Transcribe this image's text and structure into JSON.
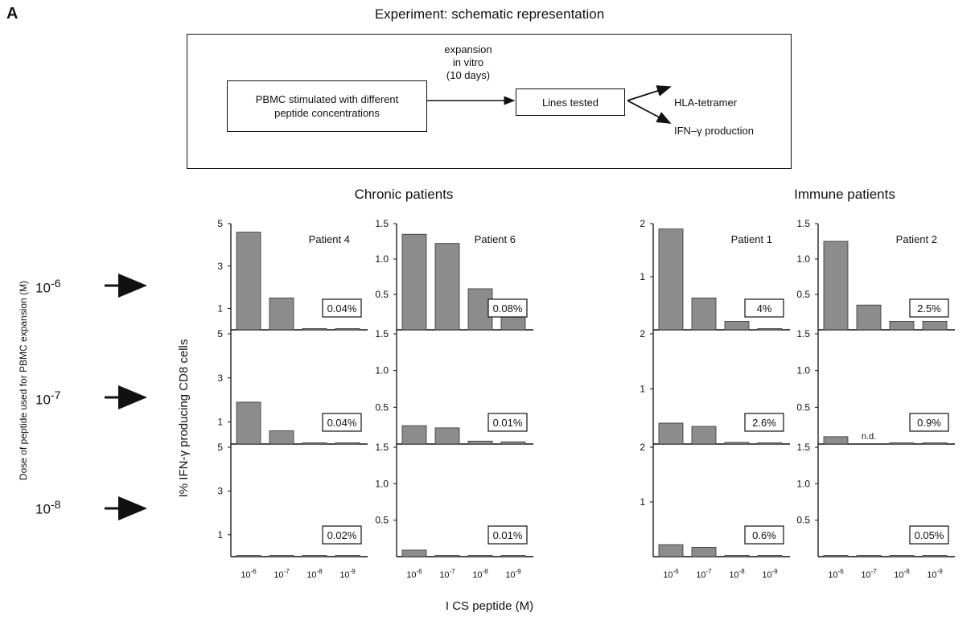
{
  "panel_label": "A",
  "schematic": {
    "title": "Experiment: schematic representation",
    "box_left": "PBMC stimulated with different peptide concentrations",
    "box_left_lines": [
      "PBMC stimulated with different",
      "peptide concentrations"
    ],
    "arrow_label_lines": [
      "expansion",
      "in vitro",
      "(10 days)"
    ],
    "box_mid": "Lines tested",
    "out_top": "HLA-tetramer",
    "out_bottom": "IFN–γ production"
  },
  "groups": {
    "chronic": "Chronic patients",
    "immune": "Immune patients"
  },
  "y_axis_label": "I% IFN-γ producing CD8 cells",
  "x_axis_label": "I CS  peptide  (M)",
  "dose_axis_label": "Dose of peptide used for PBMC expansion (M)",
  "dose_labels": [
    {
      "base": "10",
      "exp": "-6"
    },
    {
      "base": "10",
      "exp": "-7"
    },
    {
      "base": "10",
      "exp": "-8"
    }
  ],
  "chart_data": {
    "type": "bar",
    "categories": [
      "10^-6",
      "10^-7",
      "10^-8",
      "10^-9"
    ],
    "category_labels": [
      {
        "base": "10",
        "exp": "-6"
      },
      {
        "base": "10",
        "exp": "-7"
      },
      {
        "base": "10",
        "exp": "-8"
      },
      {
        "base": "10",
        "exp": "-9"
      }
    ],
    "colors": {
      "bar": "#8c8c8c",
      "bar_edge": "#333333"
    },
    "panels": [
      {
        "patient": "Patient 4",
        "ylim": [
          0,
          5
        ],
        "yticks": [
          "1",
          "3",
          "5"
        ],
        "ytick_values": [
          1,
          3,
          5
        ],
        "rows": [
          {
            "dose": "10^-6",
            "values": [
              4.6,
              1.5,
              0.05,
              0.05
            ],
            "baseline": "0.04%"
          },
          {
            "dose": "10^-7",
            "values": [
              1.9,
              0.6,
              0.05,
              0.05
            ],
            "baseline": "0.04%"
          },
          {
            "dose": "10^-8",
            "values": [
              0.05,
              0.05,
              0.05,
              0.05
            ],
            "baseline": "0.02%"
          }
        ]
      },
      {
        "patient": "Patient 6",
        "ylim": [
          0,
          1.5
        ],
        "yticks": [
          "0.5",
          "1.0",
          "1.5"
        ],
        "ytick_values": [
          0.5,
          1.0,
          1.5
        ],
        "rows": [
          {
            "dose": "10^-6",
            "values": [
              1.35,
              1.22,
              0.58,
              0.18
            ],
            "baseline": "0.08%"
          },
          {
            "dose": "10^-7",
            "values": [
              0.25,
              0.22,
              0.04,
              0.03
            ],
            "baseline": "0.01%"
          },
          {
            "dose": "10^-8",
            "values": [
              0.09,
              0.01,
              0.01,
              0.01
            ],
            "baseline": "0.01%"
          }
        ]
      },
      {
        "patient": "Patient 1",
        "ylim": [
          0,
          2
        ],
        "yticks": [
          "1",
          "2"
        ],
        "ytick_values": [
          1,
          2
        ],
        "rows": [
          {
            "dose": "10^-6",
            "values": [
              1.9,
              0.6,
              0.16,
              0.02
            ],
            "baseline": "4%"
          },
          {
            "dose": "10^-7",
            "values": [
              0.38,
              0.32,
              0.03,
              0.01
            ],
            "baseline": "2.6%"
          },
          {
            "dose": "10^-8",
            "values": [
              0.22,
              0.17,
              0.02,
              0.02
            ],
            "baseline": "0.6%"
          }
        ]
      },
      {
        "patient": "Patient 2",
        "ylim": [
          0,
          1.5
        ],
        "yticks": [
          "0.5",
          "1.0",
          "1.5"
        ],
        "ytick_values": [
          0.5,
          1.0,
          1.5
        ],
        "rows": [
          {
            "dose": "10^-6",
            "values": [
              1.25,
              0.35,
              0.12,
              0.12
            ],
            "baseline": "2.5%"
          },
          {
            "dose": "10^-7",
            "values": [
              0.1,
              null,
              0.01,
              0.01
            ],
            "baseline": "0.9%",
            "note": "n.d."
          },
          {
            "dose": "10^-8",
            "values": [
              0.01,
              0.01,
              0.01,
              0.01
            ],
            "baseline": "0.05%"
          }
        ]
      }
    ]
  }
}
